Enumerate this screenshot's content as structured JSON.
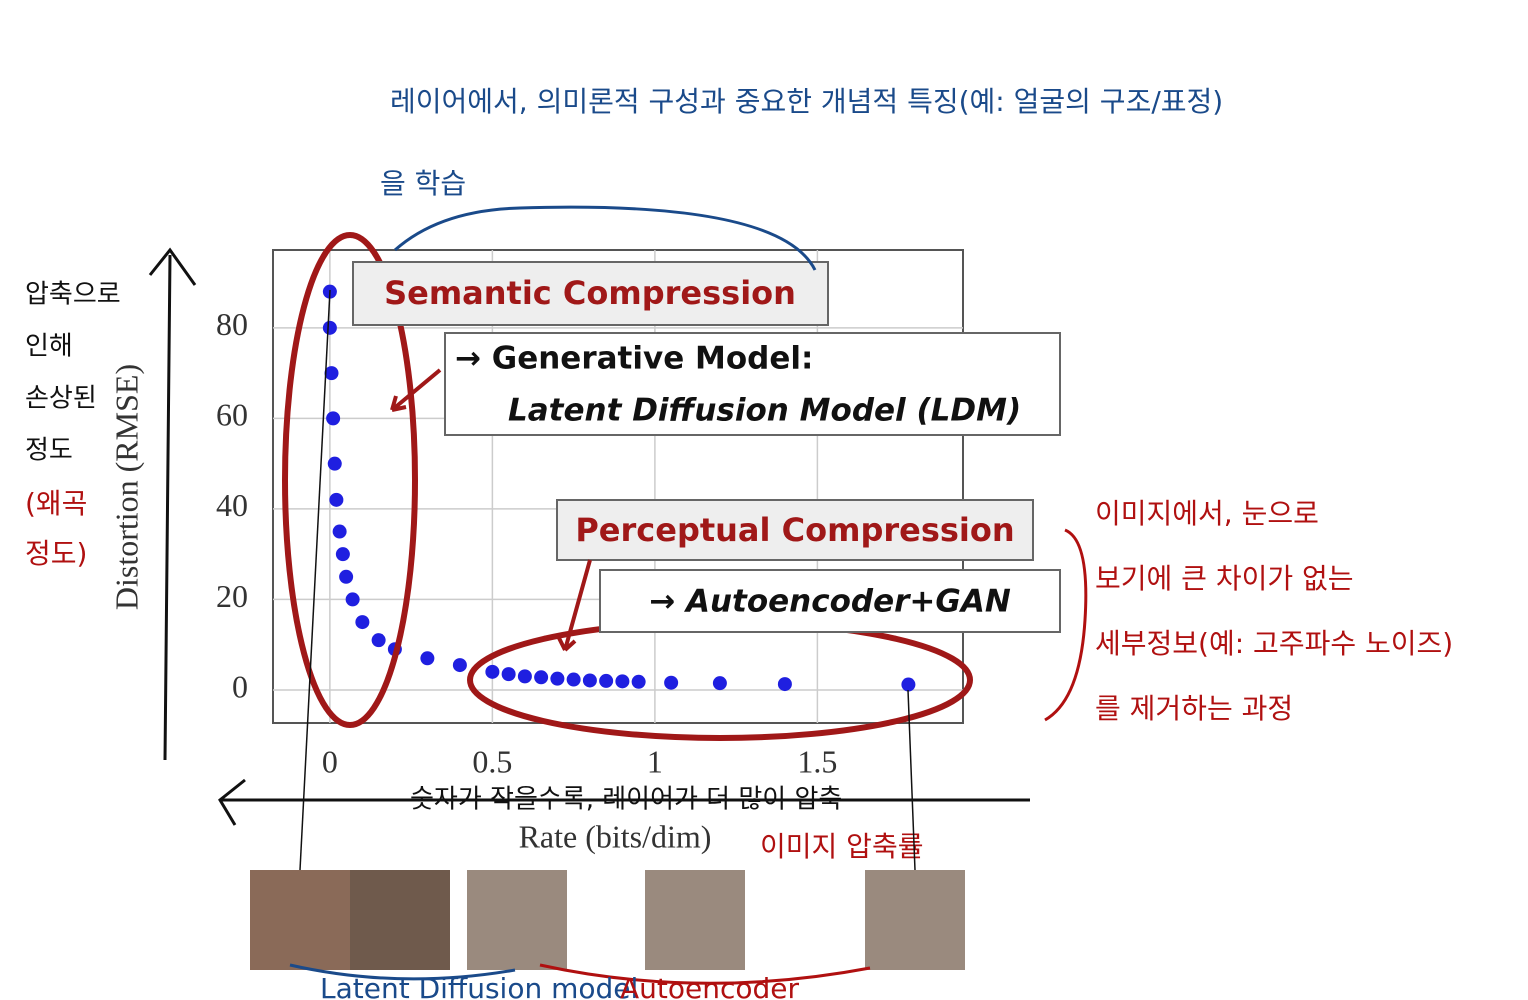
{
  "chart_data": {
    "type": "scatter",
    "x_label": "Rate (bits/dim)",
    "y_label": "Distortion (RMSE)",
    "x": [
      0,
      0,
      0.005,
      0.01,
      0.015,
      0.02,
      0.03,
      0.04,
      0.05,
      0.07,
      0.1,
      0.15,
      0.2,
      0.3,
      0.4,
      0.5,
      0.55,
      0.6,
      0.65,
      0.7,
      0.75,
      0.8,
      0.85,
      0.9,
      0.95,
      1.05,
      1.2,
      1.4,
      1.78
    ],
    "values": [
      88,
      80,
      70,
      60,
      50,
      42,
      35,
      30,
      25,
      20,
      15,
      11,
      9,
      7,
      5.5,
      4,
      3.5,
      3,
      2.8,
      2.5,
      2.3,
      2.1,
      2,
      1.9,
      1.8,
      1.6,
      1.5,
      1.3,
      1.2
    ],
    "color": "#1f1fe0",
    "xlim": [
      -0.175,
      1.948
    ],
    "ylim": [
      -7.3,
      97.2
    ],
    "xticks": [
      0,
      0.5,
      1,
      1.5
    ],
    "yticks": [
      0,
      20,
      40,
      60,
      80
    ],
    "grid": true
  },
  "boxes": {
    "semantic": "Semantic Compression",
    "generative_1": "→ Generative Model:",
    "generative_2": "Latent Diffusion Model (LDM)",
    "perceptual": "Perceptual Compression",
    "autoencoder": "→ Autoencoder+GAN"
  },
  "notes": {
    "top_1": "레이어에서, 의미론적 구성과 중요한 개념적 특징(예: 얼굴의 구조/표정)",
    "top_2": "을 학습",
    "left": [
      "압축으로",
      "인해",
      "손상된",
      "정도"
    ],
    "left_red": [
      "(왜곡",
      "정도)"
    ],
    "right": [
      "이미지에서, 눈으로",
      "보기에 큰 차이가 없는",
      "세부정보(예: 고주파수 노이즈)",
      "를 제거하는 과정"
    ],
    "bottom": "숫자가 작을수록, 레이어가 더 많이 압축",
    "rate_note": "이미지 압축률",
    "ldm": "Latent Diffusion model",
    "ae": "Autoencoder"
  }
}
